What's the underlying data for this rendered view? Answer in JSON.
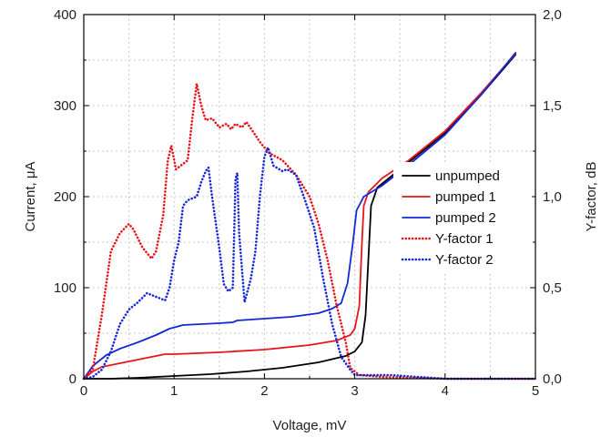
{
  "chart_data": {
    "type": "line",
    "xlabel": "Voltage, mV",
    "ylabel_left": "Current, μA",
    "ylabel_right": "Y-factor, dB",
    "xlim": [
      0,
      5
    ],
    "ylim_left": [
      0,
      400
    ],
    "ylim_right": [
      0,
      2.0
    ],
    "x_ticks": [
      "0",
      "1",
      "2",
      "3",
      "4",
      "5"
    ],
    "y_left_ticks": [
      "0",
      "100",
      "200",
      "300",
      "400"
    ],
    "y_right_ticks": [
      "0,0",
      "0,5",
      "1,0",
      "1,5",
      "2,0"
    ],
    "grid": "dotted",
    "legend_position": "right-middle",
    "series": [
      {
        "name": "unpumped",
        "axis": "left",
        "color": "#000000",
        "style": "solid",
        "points": [
          [
            0,
            0
          ],
          [
            0.3,
            0
          ],
          [
            0.6,
            1
          ],
          [
            1.0,
            3
          ],
          [
            1.4,
            5
          ],
          [
            1.8,
            8
          ],
          [
            2.2,
            12
          ],
          [
            2.6,
            18
          ],
          [
            2.9,
            25
          ],
          [
            3.0,
            30
          ],
          [
            3.08,
            40
          ],
          [
            3.12,
            70
          ],
          [
            3.15,
            130
          ],
          [
            3.18,
            190
          ],
          [
            3.25,
            210
          ],
          [
            3.4,
            222
          ],
          [
            3.6,
            238
          ],
          [
            4.0,
            270
          ],
          [
            4.4,
            312
          ],
          [
            4.78,
            356
          ]
        ]
      },
      {
        "name": "pumped 1",
        "axis": "left",
        "color": "#e8141c",
        "style": "solid",
        "points": [
          [
            0,
            0
          ],
          [
            0.1,
            8
          ],
          [
            0.2,
            13
          ],
          [
            0.4,
            17
          ],
          [
            0.6,
            21
          ],
          [
            0.8,
            25
          ],
          [
            0.9,
            27
          ],
          [
            1.0,
            27
          ],
          [
            1.5,
            29
          ],
          [
            2.0,
            32
          ],
          [
            2.5,
            37
          ],
          [
            2.8,
            42
          ],
          [
            2.95,
            48
          ],
          [
            3.0,
            55
          ],
          [
            3.05,
            80
          ],
          [
            3.08,
            150
          ],
          [
            3.1,
            190
          ],
          [
            3.15,
            205
          ],
          [
            3.3,
            220
          ],
          [
            3.6,
            240
          ],
          [
            4.0,
            272
          ],
          [
            4.4,
            314
          ],
          [
            4.78,
            357
          ]
        ]
      },
      {
        "name": "pumped 2",
        "axis": "left",
        "color": "#1528d8",
        "style": "solid",
        "points": [
          [
            0,
            0
          ],
          [
            0.1,
            14
          ],
          [
            0.25,
            26
          ],
          [
            0.4,
            33
          ],
          [
            0.6,
            40
          ],
          [
            0.8,
            48
          ],
          [
            0.95,
            55
          ],
          [
            1.1,
            59
          ],
          [
            1.3,
            60
          ],
          [
            1.5,
            61
          ],
          [
            1.65,
            62
          ],
          [
            1.7,
            64
          ],
          [
            2.0,
            66
          ],
          [
            2.3,
            68
          ],
          [
            2.6,
            72
          ],
          [
            2.75,
            77
          ],
          [
            2.85,
            83
          ],
          [
            2.92,
            105
          ],
          [
            2.98,
            150
          ],
          [
            3.02,
            185
          ],
          [
            3.1,
            200
          ],
          [
            3.3,
            212
          ],
          [
            3.6,
            235
          ],
          [
            4.0,
            268
          ],
          [
            4.4,
            312
          ],
          [
            4.78,
            358
          ]
        ]
      },
      {
        "name": "Y-factor 1",
        "axis": "right",
        "color": "#e8141c",
        "style": "dotted",
        "points": [
          [
            0,
            0
          ],
          [
            0.1,
            0.05
          ],
          [
            0.2,
            0.35
          ],
          [
            0.3,
            0.7
          ],
          [
            0.4,
            0.8
          ],
          [
            0.5,
            0.85
          ],
          [
            0.55,
            0.82
          ],
          [
            0.65,
            0.72
          ],
          [
            0.75,
            0.66
          ],
          [
            0.8,
            0.7
          ],
          [
            0.88,
            0.9
          ],
          [
            0.93,
            1.2
          ],
          [
            0.97,
            1.28
          ],
          [
            1.02,
            1.15
          ],
          [
            1.1,
            1.18
          ],
          [
            1.15,
            1.2
          ],
          [
            1.2,
            1.42
          ],
          [
            1.25,
            1.62
          ],
          [
            1.3,
            1.5
          ],
          [
            1.35,
            1.42
          ],
          [
            1.42,
            1.43
          ],
          [
            1.5,
            1.38
          ],
          [
            1.58,
            1.4
          ],
          [
            1.63,
            1.37
          ],
          [
            1.68,
            1.4
          ],
          [
            1.75,
            1.38
          ],
          [
            1.8,
            1.41
          ],
          [
            1.87,
            1.36
          ],
          [
            1.95,
            1.3
          ],
          [
            2.05,
            1.24
          ],
          [
            2.2,
            1.2
          ],
          [
            2.35,
            1.12
          ],
          [
            2.5,
            1.0
          ],
          [
            2.6,
            0.85
          ],
          [
            2.7,
            0.65
          ],
          [
            2.8,
            0.4
          ],
          [
            2.9,
            0.2
          ],
          [
            2.95,
            0.06
          ],
          [
            3.05,
            0.02
          ],
          [
            3.3,
            0.01
          ],
          [
            4.0,
            0.0
          ],
          [
            5.0,
            0.0
          ]
        ]
      },
      {
        "name": "Y-factor 2",
        "axis": "right",
        "color": "#1528d8",
        "style": "dotted",
        "points": [
          [
            0,
            0
          ],
          [
            0.1,
            0.01
          ],
          [
            0.2,
            0.05
          ],
          [
            0.3,
            0.15
          ],
          [
            0.4,
            0.3
          ],
          [
            0.5,
            0.38
          ],
          [
            0.6,
            0.42
          ],
          [
            0.7,
            0.47
          ],
          [
            0.8,
            0.45
          ],
          [
            0.9,
            0.43
          ],
          [
            0.95,
            0.5
          ],
          [
            1.0,
            0.65
          ],
          [
            1.05,
            0.75
          ],
          [
            1.1,
            0.95
          ],
          [
            1.15,
            0.98
          ],
          [
            1.25,
            1.0
          ],
          [
            1.3,
            1.08
          ],
          [
            1.35,
            1.14
          ],
          [
            1.38,
            1.16
          ],
          [
            1.42,
            1.0
          ],
          [
            1.5,
            0.72
          ],
          [
            1.55,
            0.52
          ],
          [
            1.6,
            0.48
          ],
          [
            1.65,
            0.5
          ],
          [
            1.68,
            1.1
          ],
          [
            1.7,
            1.13
          ],
          [
            1.72,
            0.8
          ],
          [
            1.78,
            0.42
          ],
          [
            1.85,
            0.55
          ],
          [
            1.9,
            0.7
          ],
          [
            1.95,
            1.0
          ],
          [
            2.0,
            1.22
          ],
          [
            2.04,
            1.27
          ],
          [
            2.1,
            1.17
          ],
          [
            2.2,
            1.14
          ],
          [
            2.25,
            1.15
          ],
          [
            2.35,
            1.12
          ],
          [
            2.45,
            0.98
          ],
          [
            2.55,
            0.83
          ],
          [
            2.65,
            0.55
          ],
          [
            2.75,
            0.3
          ],
          [
            2.85,
            0.12
          ],
          [
            2.95,
            0.05
          ],
          [
            3.0,
            0.02
          ],
          [
            3.4,
            0.02
          ],
          [
            3.7,
            0.01
          ],
          [
            4.0,
            0.0
          ],
          [
            5.0,
            0.0
          ]
        ]
      }
    ]
  }
}
